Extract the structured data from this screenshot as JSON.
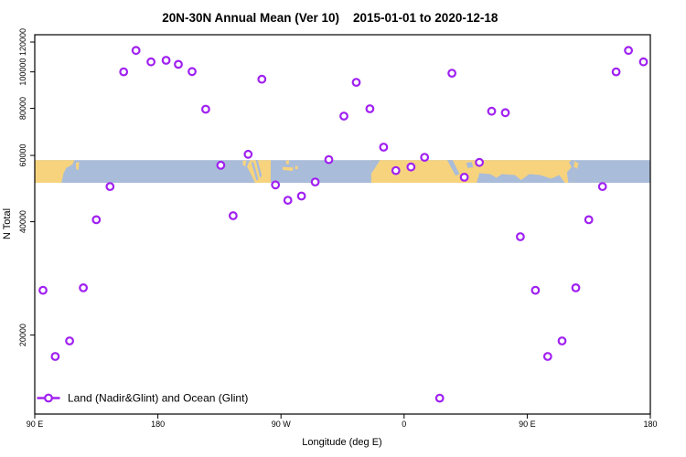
{
  "window": {
    "background": "#ffffff"
  },
  "chart": {
    "title_part1": "20N-30N Annual Mean (Ver 10)",
    "title_part2": "2015-01-01 to 2020-12-18",
    "xlabel": "Longitude (deg E)",
    "ylabel": "N Total",
    "legend_label": "Land (Nadir&Glint) and Ocean (Glint)"
  },
  "colors": {
    "marker": "#A020F0",
    "marker_fill": "#ffffff",
    "land": "#F7D37E",
    "ocean": "#A9BCD9",
    "axis": "#000000",
    "background": "#ffffff"
  },
  "chart_data": {
    "type": "scatter",
    "title": "20N-30N Annual Mean (Ver 10)   2015-01-01 to 2020-12-18",
    "xlabel": "Longitude (deg E)",
    "ylabel": "N Total",
    "y_scale": "log",
    "y_range": [
      12340,
      125500
    ],
    "x_axis_span_deg": 450,
    "x_start_lon": 90,
    "wrap_note": "x axis runs 90E..180..90W..0..90E..180; points with lon >= 90E appear twice",
    "grid": "off",
    "x_ticks": [
      {
        "label": "90 E",
        "t": 0
      },
      {
        "label": "180",
        "t": 90
      },
      {
        "label": "90 W",
        "t": 180
      },
      {
        "label": "0",
        "t": 270
      },
      {
        "label": "90 E",
        "t": 360
      },
      {
        "label": "180",
        "t": 450
      }
    ],
    "y_ticks": [
      {
        "label": "20000",
        "v": 20000
      },
      {
        "label": "40000",
        "v": 40000
      },
      {
        "label": "60000",
        "v": 60000
      },
      {
        "label": "80000",
        "v": 80000
      },
      {
        "label": "100000",
        "v": 100000
      },
      {
        "label": "120000",
        "v": 120000
      }
    ],
    "legend": {
      "label": "Land (Nadir&Glint) and Ocean (Glint)",
      "position": "bottom-left"
    },
    "points": [
      {
        "lon": -174,
        "value": 107300
      },
      {
        "lon": -165,
        "value": 104700
      },
      {
        "lon": -155,
        "value": 100200
      },
      {
        "lon": -145,
        "value": 79600
      },
      {
        "lon": -134,
        "value": 56500
      },
      {
        "lon": -125,
        "value": 41500
      },
      {
        "lon": -114,
        "value": 60400
      },
      {
        "lon": -104,
        "value": 95600
      },
      {
        "lon": -94,
        "value": 50100
      },
      {
        "lon": -85,
        "value": 45600
      },
      {
        "lon": -75,
        "value": 46800
      },
      {
        "lon": -65,
        "value": 51000
      },
      {
        "lon": -55,
        "value": 58500
      },
      {
        "lon": -44,
        "value": 76300
      },
      {
        "lon": -35,
        "value": 93800
      },
      {
        "lon": -25,
        "value": 79800
      },
      {
        "lon": -15,
        "value": 63100
      },
      {
        "lon": -6,
        "value": 54700
      },
      {
        "lon": 5,
        "value": 55900
      },
      {
        "lon": 15,
        "value": 59300
      },
      {
        "lon": 26,
        "value": 13600
      },
      {
        "lon": 35,
        "value": 99200
      },
      {
        "lon": 44,
        "value": 52500
      },
      {
        "lon": 55,
        "value": 57500
      },
      {
        "lon": 64,
        "value": 78600
      },
      {
        "lon": 74,
        "value": 77900
      },
      {
        "lon": 85,
        "value": 36500
      },
      {
        "lon": 96,
        "value": 26300
      },
      {
        "lon": 105,
        "value": 17550
      },
      {
        "lon": 115.5,
        "value": 19300
      },
      {
        "lon": 125.5,
        "value": 26700
      },
      {
        "lon": 135,
        "value": 40500
      },
      {
        "lon": 145,
        "value": 49600
      },
      {
        "lon": 155,
        "value": 100000
      },
      {
        "lon": 164,
        "value": 114000
      },
      {
        "lon": 175,
        "value": 106300
      }
    ],
    "map_strip": {
      "value_top": 58330,
      "value_bottom": 50750,
      "land_patches": [
        {
          "name": "asia-east",
          "pts": [
            [
              0,
              0
            ],
            [
              29,
              0
            ],
            [
              27.5,
              0.2
            ],
            [
              23,
              0.35
            ],
            [
              21,
              0.6
            ],
            [
              19.5,
              1
            ],
            [
              0,
              1
            ]
          ]
        },
        {
          "name": "taiwan",
          "pts": [
            [
              30,
              0.12
            ],
            [
              32.5,
              0.08
            ],
            [
              31.8,
              0.45
            ],
            [
              30.3,
              0.4
            ]
          ]
        },
        {
          "name": "baja",
          "pts": [
            [
              152,
              0.03
            ],
            [
              154.8,
              0.03
            ],
            [
              153.8,
              0.28
            ],
            [
              152.2,
              0.22
            ]
          ]
        },
        {
          "name": "mexico",
          "pts": [
            [
              156.5,
              0.08
            ],
            [
              158,
              0
            ],
            [
              172.5,
              0
            ],
            [
              172.5,
              1
            ],
            [
              161,
              1
            ],
            [
              157.5,
              0.55
            ],
            [
              155.2,
              0.3
            ]
          ]
        },
        {
          "name": "cuba",
          "pts": [
            [
              181,
              0.3
            ],
            [
              189,
              0.33
            ],
            [
              188.5,
              0.48
            ],
            [
              181.5,
              0.44
            ]
          ]
        },
        {
          "name": "florida",
          "pts": [
            [
              183.5,
              0.02
            ],
            [
              186,
              0.02
            ],
            [
              185.5,
              0.2
            ],
            [
              183.8,
              0.16
            ]
          ]
        },
        {
          "name": "bahamas",
          "pts": [
            [
              190.5,
              0.25
            ],
            [
              192.5,
              0.28
            ],
            [
              192,
              0.42
            ],
            [
              190.2,
              0.4
            ]
          ]
        },
        {
          "name": "africa-arabia-india",
          "pts": [
            [
              246,
              0
            ],
            [
              394,
              0
            ],
            [
              394,
              1
            ],
            [
              246,
              1
            ]
          ]
        },
        {
          "name": "se-asia-coast",
          "pts": [
            [
              394.5,
              0.05
            ],
            [
              397.5,
              0.15
            ],
            [
              396.5,
              0.38
            ],
            [
              394.2,
              0.3
            ]
          ]
        }
      ],
      "ocean_overlays": [
        {
          "name": "nw-africa-notch",
          "pts": [
            [
              246,
              0
            ],
            [
              252.5,
              0
            ],
            [
              246,
              0.6
            ]
          ]
        },
        {
          "name": "red-sea",
          "pts": [
            [
              301.5,
              0
            ],
            [
              305.5,
              0
            ],
            [
              310.5,
              0.62
            ],
            [
              307.5,
              0.68
            ]
          ]
        },
        {
          "name": "persian-gulf",
          "pts": [
            [
              315.5,
              0.12
            ],
            [
              319.5,
              0.08
            ],
            [
              320.5,
              0.32
            ],
            [
              316.5,
              0.34
            ]
          ]
        },
        {
          "name": "indian-ocean",
          "pts": [
            [
              323,
              1
            ],
            [
              325,
              0.58
            ],
            [
              333,
              0.62
            ],
            [
              337.5,
              0.78
            ],
            [
              341.5,
              0.62
            ],
            [
              351,
              0.66
            ],
            [
              355.5,
              0.88
            ],
            [
              361.5,
              0.62
            ],
            [
              369.5,
              0.66
            ],
            [
              377.5,
              0.82
            ],
            [
              383.5,
              0.66
            ],
            [
              387.5,
              1
            ]
          ]
        },
        {
          "name": "asia-east-coast",
          "pts": [
            [
              389,
              0.55
            ],
            [
              392.5,
              0.3
            ],
            [
              390.5,
              0.1
            ],
            [
              392.5,
              0
            ],
            [
              394,
              0
            ],
            [
              394,
              1
            ],
            [
              390,
              1
            ]
          ]
        },
        {
          "name": "mexico-slash-1",
          "pts": [
            [
              158.3,
              0.1
            ],
            [
              159.8,
              0.08
            ],
            [
              163.5,
              0.85
            ],
            [
              162,
              0.9
            ]
          ]
        },
        {
          "name": "mexico-slash-2",
          "pts": [
            [
              161.5,
              0
            ],
            [
              163,
              0
            ],
            [
              166,
              0.7
            ],
            [
              164.6,
              0.78
            ]
          ]
        }
      ]
    }
  }
}
